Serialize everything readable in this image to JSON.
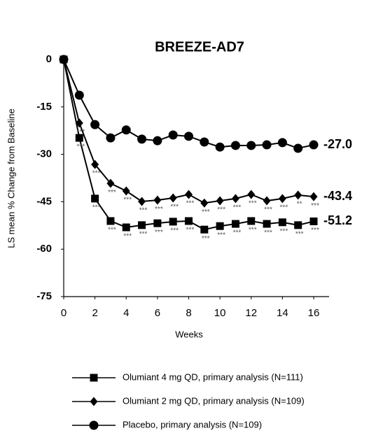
{
  "chart_data": {
    "type": "line",
    "title": "BREEZE-AD7",
    "x_label": "Weeks",
    "y_label": "LS mean % Change from Baseline",
    "x": [
      0,
      1,
      2,
      3,
      4,
      5,
      6,
      7,
      8,
      9,
      10,
      11,
      12,
      13,
      14,
      15,
      16
    ],
    "xlim": [
      0,
      16
    ],
    "xticks": [
      0,
      2,
      4,
      6,
      8,
      10,
      12,
      14,
      16
    ],
    "ylim": [
      -75,
      0
    ],
    "yticks": [
      0,
      -15,
      -30,
      -45,
      -60,
      -75
    ],
    "series": [
      {
        "name": "Olumiant 4 mg QD, primary analysis (N=111)",
        "color": "#000000",
        "marker": "square",
        "values": [
          0,
          -24.8,
          -44.0,
          -51.1,
          -53.1,
          -52.4,
          -51.8,
          -51.3,
          -51.1,
          -53.8,
          -52.7,
          -52.0,
          -51.1,
          -52.0,
          -51.5,
          -52.4,
          -51.2
        ],
        "value_labels": [
          null,
          null,
          null,
          null,
          null,
          null,
          null,
          null,
          null,
          null,
          null,
          null,
          null,
          null,
          null,
          null,
          "-51.2"
        ],
        "significance": [
          null,
          "***",
          "***",
          "***",
          "***",
          "***",
          "***",
          "***",
          "***",
          "***",
          "***",
          "***",
          "***",
          "***",
          "***",
          "***",
          "***"
        ]
      },
      {
        "name": "Olumiant 2 mg QD, primary analysis (N=109)",
        "color": "#000000",
        "marker": "diamond",
        "values": [
          0,
          -20.1,
          -33.2,
          -39.2,
          -41.6,
          -44.9,
          -44.5,
          -43.8,
          -42.7,
          -45.4,
          -44.7,
          -44.0,
          -42.7,
          -44.7,
          -44.0,
          -42.9,
          -43.4
        ],
        "value_labels": [
          null,
          null,
          null,
          null,
          null,
          null,
          null,
          null,
          null,
          null,
          null,
          null,
          null,
          null,
          null,
          null,
          "-43.4"
        ],
        "significance": [
          null,
          "***",
          "***",
          "***",
          "***",
          "***",
          "***",
          "***",
          "***",
          "***",
          "***",
          "***",
          "***",
          "***",
          "***",
          "**",
          "***"
        ]
      },
      {
        "name": "Placebo, primary analysis (N=109)",
        "color": "#000000",
        "marker": "circle",
        "values": [
          0,
          -11.3,
          -20.6,
          -24.8,
          -22.3,
          -25.2,
          -25.7,
          -23.9,
          -24.3,
          -26.1,
          -27.7,
          -27.2,
          -27.2,
          -27.0,
          -26.3,
          -28.1,
          -27.0
        ],
        "value_labels": [
          null,
          null,
          null,
          null,
          null,
          null,
          null,
          null,
          null,
          null,
          null,
          null,
          null,
          null,
          null,
          null,
          "-27.0"
        ],
        "significance": [
          null,
          null,
          null,
          null,
          null,
          null,
          null,
          null,
          null,
          null,
          null,
          null,
          null,
          null,
          null,
          null,
          null
        ]
      }
    ]
  }
}
